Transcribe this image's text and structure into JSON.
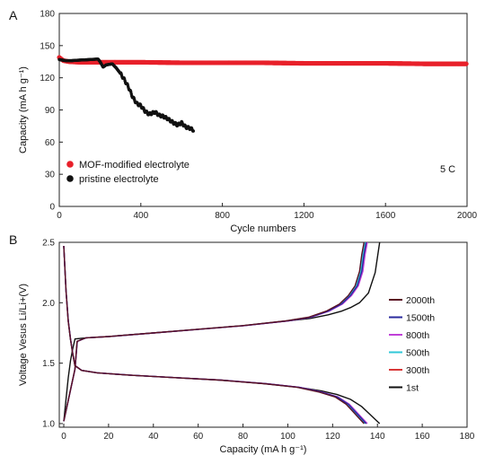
{
  "chart_data": [
    {
      "panel": "A",
      "type": "scatter",
      "xlabel": "Cycle numbers",
      "ylabel": "Capacity (mA h g⁻¹)",
      "xlim": [
        0,
        2000
      ],
      "ylim": [
        0,
        180
      ],
      "xticks": [
        0,
        400,
        800,
        1200,
        1600,
        2000
      ],
      "yticks": [
        0,
        30,
        60,
        90,
        120,
        150,
        180
      ],
      "annotation": "5 C",
      "legend_position": "bottom-left",
      "series": [
        {
          "name": "MOF-modified electrolyte",
          "color": "#e8202a",
          "x": [
            0,
            20,
            50,
            100,
            200,
            400,
            600,
            800,
            1000,
            1200,
            1400,
            1600,
            1800,
            2000
          ],
          "y": [
            139,
            136,
            135,
            134.5,
            134.5,
            134.5,
            134,
            134,
            134,
            133.5,
            133.5,
            133.5,
            133,
            133
          ]
        },
        {
          "name": "pristine electrolyte",
          "color": "#111111",
          "x": [
            0,
            30,
            60,
            100,
            150,
            190,
            200,
            215,
            230,
            260,
            280,
            300,
            320,
            340,
            360,
            380,
            400,
            420,
            440,
            470,
            490,
            510,
            530,
            560,
            580,
            600,
            620,
            640,
            660
          ],
          "y": [
            137,
            136,
            136,
            136.5,
            137,
            137.5,
            135,
            130,
            132,
            133,
            129,
            124,
            118,
            111,
            102,
            96,
            94,
            89,
            86,
            88,
            85,
            84,
            82,
            78,
            76,
            78,
            74,
            73,
            71
          ]
        }
      ]
    },
    {
      "panel": "B",
      "type": "line",
      "xlabel": "Capacity (mA h g⁻¹)",
      "ylabel": "Voltage Vesus Li/Li+(V)",
      "xlim": [
        -2,
        180
      ],
      "ylim": [
        0.97,
        2.5
      ],
      "xticks": [
        0,
        20,
        40,
        60,
        80,
        100,
        120,
        140,
        160,
        180
      ],
      "yticks": [
        1.0,
        1.5,
        2.0,
        2.5
      ],
      "legend_position": "right",
      "series": [
        {
          "name": "2000th",
          "color": "#5a0f22",
          "cap": 134
        },
        {
          "name": "1500th",
          "color": "#2a2a9e",
          "cap": 135
        },
        {
          "name": "800th",
          "color": "#c040d8",
          "cap": 135.5
        },
        {
          "name": "500th",
          "color": "#30c8d8",
          "cap": 134.5
        },
        {
          "name": "300th",
          "color": "#d83838",
          "cap": 135
        },
        {
          "name": "1st",
          "color": "#111111",
          "cap": 141
        }
      ],
      "charge_profile": {
        "x": [
          0,
          5,
          6,
          10,
          20,
          40,
          60,
          80,
          100,
          110,
          118,
          124,
          128,
          131,
          133,
          134,
          135
        ],
        "y": [
          1.02,
          1.45,
          1.68,
          1.71,
          1.72,
          1.75,
          1.78,
          1.81,
          1.85,
          1.88,
          1.93,
          1.99,
          2.06,
          2.14,
          2.26,
          2.4,
          2.5
        ]
      },
      "discharge_profile": {
        "x": [
          0,
          1,
          2,
          3,
          4,
          5,
          8,
          15,
          30,
          50,
          70,
          90,
          105,
          115,
          122,
          127,
          130,
          133,
          135
        ],
        "y": [
          2.47,
          2.1,
          1.85,
          1.7,
          1.58,
          1.48,
          1.44,
          1.42,
          1.4,
          1.38,
          1.36,
          1.33,
          1.3,
          1.26,
          1.22,
          1.16,
          1.1,
          1.04,
          1.0
        ]
      },
      "first_cycle": {
        "charge": {
          "x": [
            5,
            10,
            20,
            40,
            60,
            80,
            100,
            110,
            118,
            124,
            128,
            132,
            136,
            139,
            141
          ],
          "y": [
            1.7,
            1.71,
            1.72,
            1.75,
            1.78,
            1.81,
            1.85,
            1.87,
            1.9,
            1.93,
            1.96,
            2.0,
            2.08,
            2.25,
            2.5
          ]
        },
        "discharge": {
          "x": [
            5,
            8,
            15,
            30,
            50,
            70,
            90,
            105,
            115,
            122,
            128,
            133,
            137,
            141
          ],
          "y": [
            1.48,
            1.44,
            1.42,
            1.4,
            1.38,
            1.36,
            1.33,
            1.3,
            1.27,
            1.24,
            1.2,
            1.14,
            1.07,
            1.0
          ]
        }
      }
    }
  ]
}
